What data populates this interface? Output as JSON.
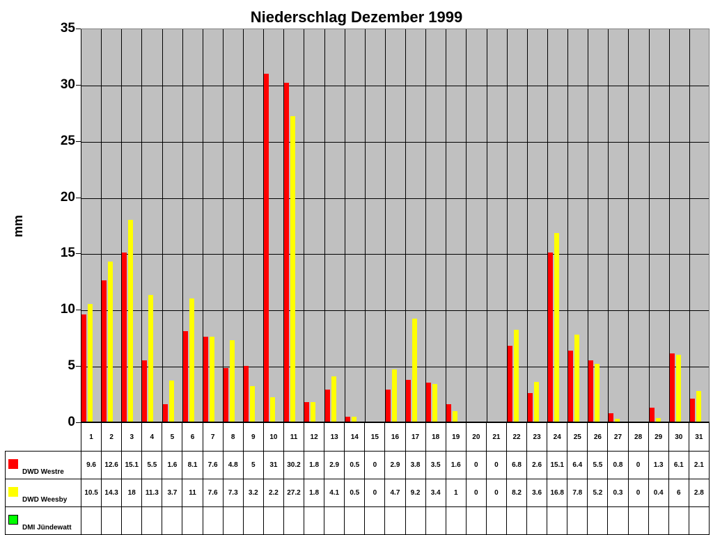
{
  "chart_data": {
    "type": "bar",
    "title": "Niederschlag Dezember 1999",
    "xlabel": "",
    "ylabel": "mm",
    "ylim": [
      0,
      35
    ],
    "yticks": [
      0,
      5,
      10,
      15,
      20,
      25,
      30,
      35
    ],
    "grid": true,
    "legend_position": "data-table-left",
    "categories": [
      "1",
      "2",
      "3",
      "4",
      "5",
      "6",
      "7",
      "8",
      "9",
      "10",
      "11",
      "12",
      "13",
      "14",
      "15",
      "16",
      "17",
      "18",
      "19",
      "20",
      "21",
      "22",
      "23",
      "24",
      "25",
      "26",
      "27",
      "28",
      "29",
      "30",
      "31"
    ],
    "series": [
      {
        "name": "DWD Westre",
        "color": "#ff0000",
        "values": [
          9.6,
          12.6,
          15.1,
          5.5,
          1.6,
          8.1,
          7.6,
          4.8,
          5,
          31,
          30.2,
          1.8,
          2.9,
          0.5,
          0,
          2.9,
          3.8,
          3.5,
          1.6,
          0,
          0,
          6.8,
          2.6,
          15.1,
          6.4,
          5.5,
          0.8,
          0,
          1.3,
          6.1,
          2.1
        ]
      },
      {
        "name": "DWD Weesby",
        "color": "#ffff00",
        "values": [
          10.5,
          14.3,
          18,
          11.3,
          3.7,
          11,
          7.6,
          7.3,
          3.2,
          2.2,
          27.2,
          1.8,
          4.1,
          0.5,
          0,
          4.7,
          9.2,
          3.4,
          1,
          0,
          0,
          8.2,
          3.6,
          16.8,
          7.8,
          5.2,
          0.3,
          0,
          0.4,
          6,
          2.8
        ]
      },
      {
        "name": "DMI Jündewatt",
        "color": "#00ff00",
        "values": [
          null,
          null,
          null,
          null,
          null,
          null,
          null,
          null,
          null,
          null,
          null,
          null,
          null,
          null,
          null,
          null,
          null,
          null,
          null,
          null,
          null,
          null,
          null,
          null,
          null,
          null,
          null,
          null,
          null,
          null,
          null
        ]
      }
    ]
  },
  "labels": {
    "title": "Niederschlag Dezember 1999",
    "ylabel": "mm"
  }
}
